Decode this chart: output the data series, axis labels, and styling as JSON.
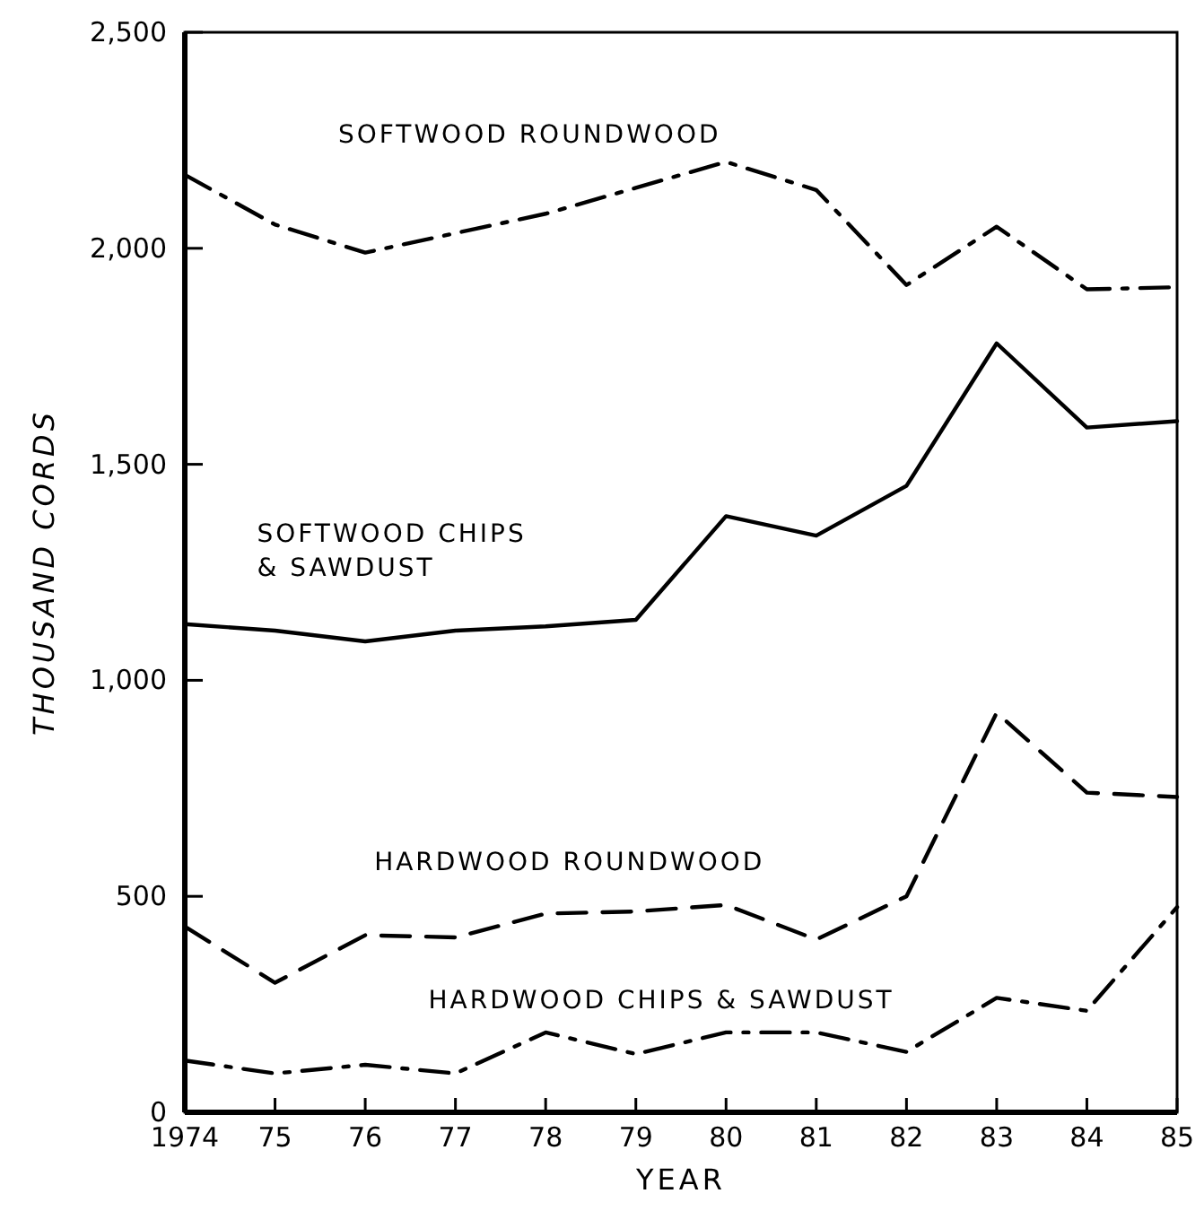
{
  "chart_data": {
    "type": "line",
    "xlabel": "YEAR",
    "ylabel": "THOUSAND CORDS",
    "x": [
      1974,
      1975,
      1976,
      1977,
      1978,
      1979,
      1980,
      1981,
      1982,
      1983,
      1984,
      1985
    ],
    "xlim": [
      1974,
      1985
    ],
    "xticks": [
      1974,
      {
        "value": 1975,
        "label": "75"
      },
      {
        "value": 1976,
        "label": "76"
      },
      {
        "value": 1977,
        "label": "77"
      },
      {
        "value": 1978,
        "label": "78"
      },
      {
        "value": 1979,
        "label": "79"
      },
      {
        "value": 1980,
        "label": "80"
      },
      {
        "value": 1981,
        "label": "81"
      },
      {
        "value": 1982,
        "label": "82"
      },
      {
        "value": 1983,
        "label": "83"
      },
      {
        "value": 1984,
        "label": "84"
      },
      {
        "value": 1985,
        "label": "85"
      }
    ],
    "ylim": [
      0,
      2500
    ],
    "yticks": [
      0,
      {
        "value": 500,
        "label": "500"
      },
      {
        "value": 1000,
        "label": "1,000"
      },
      {
        "value": 1500,
        "label": "1,500"
      },
      {
        "value": 2000,
        "label": "2,000"
      },
      {
        "value": 2500,
        "label": "2,500"
      }
    ],
    "grid": false,
    "marker": "none",
    "series": [
      {
        "name": "SOFTWOOD ROUNDWOOD",
        "color": "#000000",
        "line_style": "dashdot",
        "values": [
          2170,
          2055,
          1990,
          2035,
          2080,
          2140,
          2200,
          2135,
          1915,
          2050,
          1905,
          1910
        ]
      },
      {
        "name": "SOFTWOOD CHIPS & SAWDUST",
        "color": "#000000",
        "line_style": "solid",
        "values": [
          1130,
          1115,
          1090,
          1115,
          1125,
          1140,
          1380,
          1335,
          1450,
          1780,
          1585,
          1600
        ]
      },
      {
        "name": "HARDWOOD ROUNDWOOD",
        "color": "#000000",
        "line_style": "dashed",
        "values": [
          430,
          300,
          410,
          405,
          460,
          465,
          480,
          400,
          500,
          925,
          740,
          730
        ]
      },
      {
        "name": "HARDWOOD CHIPS & SAWDUST",
        "color": "#000000",
        "line_style": "dashdot",
        "values": [
          120,
          90,
          110,
          90,
          185,
          135,
          185,
          185,
          140,
          265,
          235,
          475
        ]
      }
    ]
  }
}
